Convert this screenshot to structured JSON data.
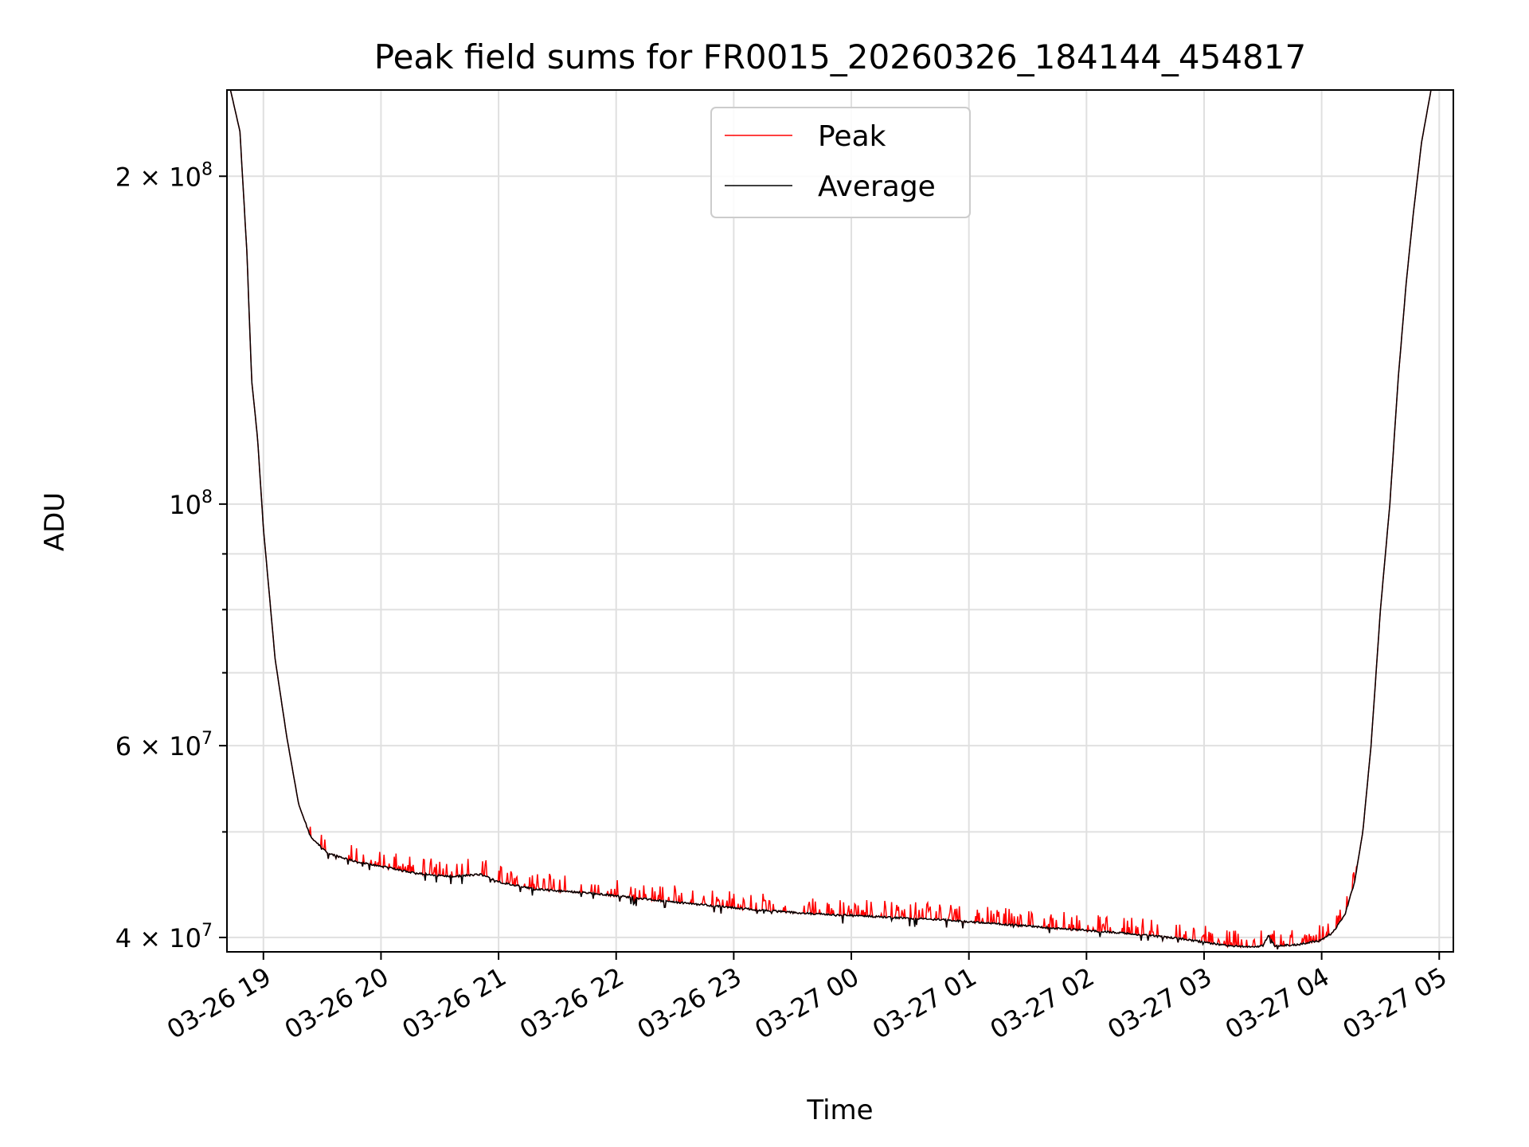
{
  "chart_data": {
    "type": "line",
    "title": "Peak field sums for FR0015_20260326_184144_454817",
    "xlabel": "Time",
    "ylabel": "ADU",
    "yscale": "log",
    "xlim_hours": [
      18.69,
      29.12
    ],
    "ylim": [
      38800000,
      240000000
    ],
    "grid": true,
    "legend_position": "upper-center",
    "x_ticks": [
      {
        "hour": 19,
        "label": "03-26 19"
      },
      {
        "hour": 20,
        "label": "03-26 20"
      },
      {
        "hour": 21,
        "label": "03-26 21"
      },
      {
        "hour": 22,
        "label": "03-26 22"
      },
      {
        "hour": 23,
        "label": "03-26 23"
      },
      {
        "hour": 24,
        "label": "03-27 00"
      },
      {
        "hour": 25,
        "label": "03-27 01"
      },
      {
        "hour": 26,
        "label": "03-27 02"
      },
      {
        "hour": 27,
        "label": "03-27 03"
      },
      {
        "hour": 28,
        "label": "03-27 04"
      },
      {
        "hour": 29,
        "label": "03-27 05"
      }
    ],
    "y_major_ticks": [
      {
        "value": 40000000,
        "mant": "4 × 10",
        "exp": "7"
      },
      {
        "value": 60000000,
        "mant": "6 × 10",
        "exp": "7"
      },
      {
        "value": 100000000,
        "mant": "10",
        "exp": "8"
      },
      {
        "value": 200000000,
        "mant": "2 × 10",
        "exp": "8"
      }
    ],
    "y_minor_ticks": [
      50000000,
      70000000,
      80000000,
      90000000
    ],
    "series": [
      {
        "name": "Peak",
        "color": "#ff0000"
      },
      {
        "name": "Average",
        "color": "#000000"
      }
    ],
    "average_points": [
      [
        18.72,
        240000000
      ],
      [
        18.8,
        220000000
      ],
      [
        18.86,
        170000000
      ],
      [
        18.9,
        130000000
      ],
      [
        18.95,
        115000000
      ],
      [
        19.0,
        95000000
      ],
      [
        19.1,
        72000000
      ],
      [
        19.2,
        61000000
      ],
      [
        19.3,
        53000000
      ],
      [
        19.4,
        49500000
      ],
      [
        19.55,
        47800000
      ],
      [
        19.8,
        46900000
      ],
      [
        20.0,
        46500000
      ],
      [
        20.3,
        45800000
      ],
      [
        20.6,
        45500000
      ],
      [
        20.85,
        45700000
      ],
      [
        21.0,
        45000000
      ],
      [
        21.3,
        44300000
      ],
      [
        21.7,
        44000000
      ],
      [
        22.0,
        43700000
      ],
      [
        22.4,
        43200000
      ],
      [
        22.8,
        42800000
      ],
      [
        23.2,
        42400000
      ],
      [
        23.6,
        42100000
      ],
      [
        24.0,
        41900000
      ],
      [
        24.4,
        41700000
      ],
      [
        24.8,
        41500000
      ],
      [
        25.2,
        41200000
      ],
      [
        25.6,
        40900000
      ],
      [
        26.0,
        40600000
      ],
      [
        26.4,
        40300000
      ],
      [
        26.8,
        39900000
      ],
      [
        27.0,
        39600000
      ],
      [
        27.2,
        39300000
      ],
      [
        27.4,
        39200000
      ],
      [
        27.5,
        39300000
      ],
      [
        27.55,
        40200000
      ],
      [
        27.6,
        39300000
      ],
      [
        27.8,
        39400000
      ],
      [
        28.0,
        39800000
      ],
      [
        28.1,
        40500000
      ],
      [
        28.2,
        42000000
      ],
      [
        28.28,
        45000000
      ],
      [
        28.35,
        50000000
      ],
      [
        28.42,
        60000000
      ],
      [
        28.5,
        80000000
      ],
      [
        28.58,
        100000000
      ],
      [
        28.65,
        130000000
      ],
      [
        28.72,
        160000000
      ],
      [
        28.78,
        185000000
      ],
      [
        28.85,
        215000000
      ],
      [
        28.93,
        240000000
      ]
    ]
  }
}
